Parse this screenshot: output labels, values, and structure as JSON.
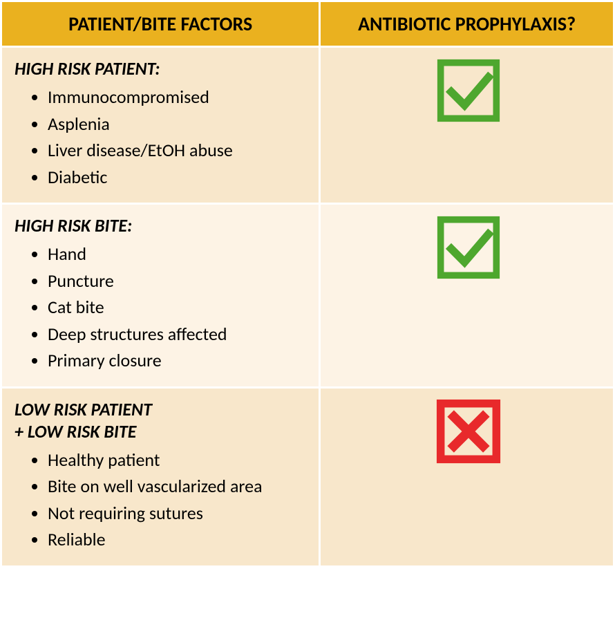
{
  "table": {
    "header_bg": "#eab11f",
    "header_fg": "#000000",
    "header_fontsize": 28,
    "row_bg_alt1": "#f8e7cb",
    "row_bg_alt2": "#fdf3e5",
    "text_color": "#000000",
    "body_fontsize": 26,
    "title_fontsize": 26,
    "border_color": "#ffffff",
    "columns": [
      "PATIENT/BITE FACTORS",
      "ANTIBIOTIC PROPHYLAXIS?"
    ],
    "rows": [
      {
        "category_title": "HIGH RISK PATIENT:",
        "items": [
          "Immunocompromised",
          "Asplenia",
          "Liver disease/EtOH abuse",
          "Diabetic"
        ],
        "indicator": "check",
        "bg": "#f8e7cb"
      },
      {
        "category_title": "HIGH RISK BITE:",
        "items": [
          "Hand",
          "Puncture",
          "Cat bite",
          "Deep structures affected",
          "Primary closure"
        ],
        "indicator": "check",
        "bg": "#fdf3e5"
      },
      {
        "category_title": "LOW RISK PATIENT",
        "category_title_2": "+ LOW RISK BITE",
        "items": [
          "Healthy patient",
          "Bite on well vascularized area",
          "Not requiring sutures",
          "Reliable"
        ],
        "indicator": "cross",
        "bg": "#f8e7cb"
      }
    ],
    "check_icon": {
      "box_stroke": "#4ea72e",
      "tick_stroke": "#4ea72e",
      "stroke_width": 10,
      "size": 96
    },
    "cross_icon": {
      "box_stroke": "#e8292b",
      "x_stroke": "#e8292b",
      "stroke_width": 12,
      "size": 96
    }
  }
}
